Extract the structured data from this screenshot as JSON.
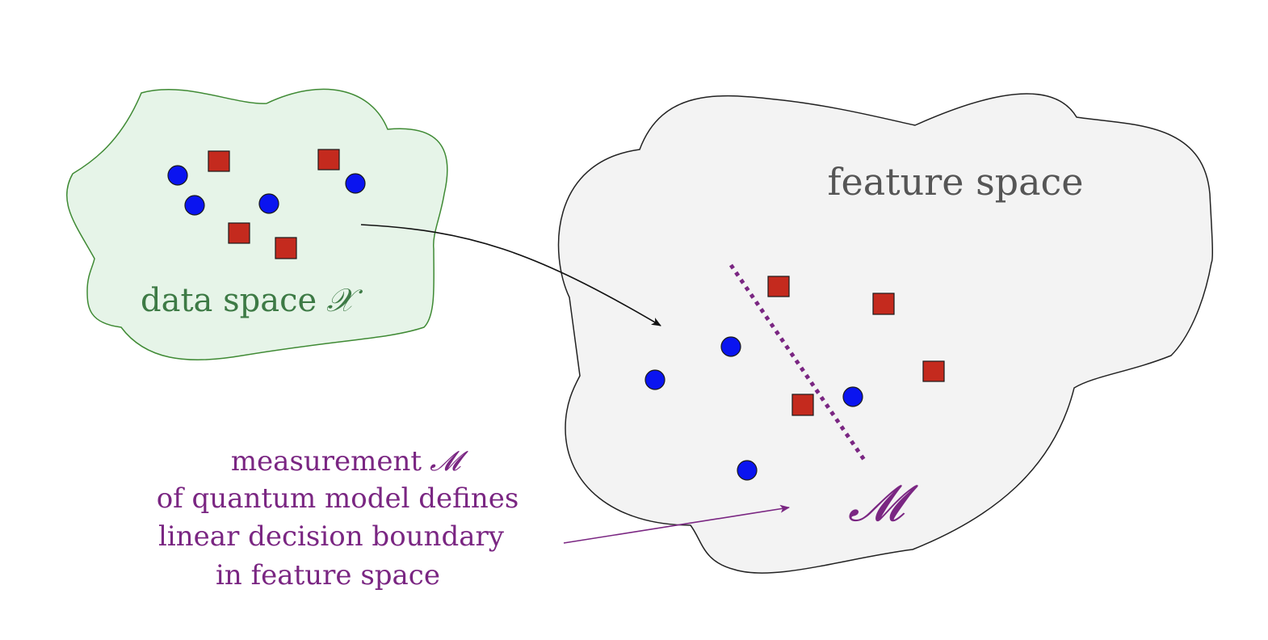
{
  "data_space": {
    "label": "data space",
    "symbol": "𝒳",
    "fill": "#e6f4e8",
    "stroke": "#3f8a34",
    "text_color": "#3d7a45"
  },
  "feature_space": {
    "label": "feature space",
    "fill": "#f3f3f3",
    "stroke": "#222222",
    "text_color": "#555555",
    "boundary_symbol": "𝓜"
  },
  "caption": {
    "line1": "measurement",
    "line1_symbol": "𝓜",
    "line2": "of quantum model defines",
    "line3": "linear decision boundary",
    "line4": "in feature space",
    "color": "#7a2682"
  },
  "markers": {
    "circle_color": "#0a14f0",
    "square_color": "#c42a1e",
    "outline_color": "#1a1a1a"
  },
  "boundary_color": "#7a2682"
}
